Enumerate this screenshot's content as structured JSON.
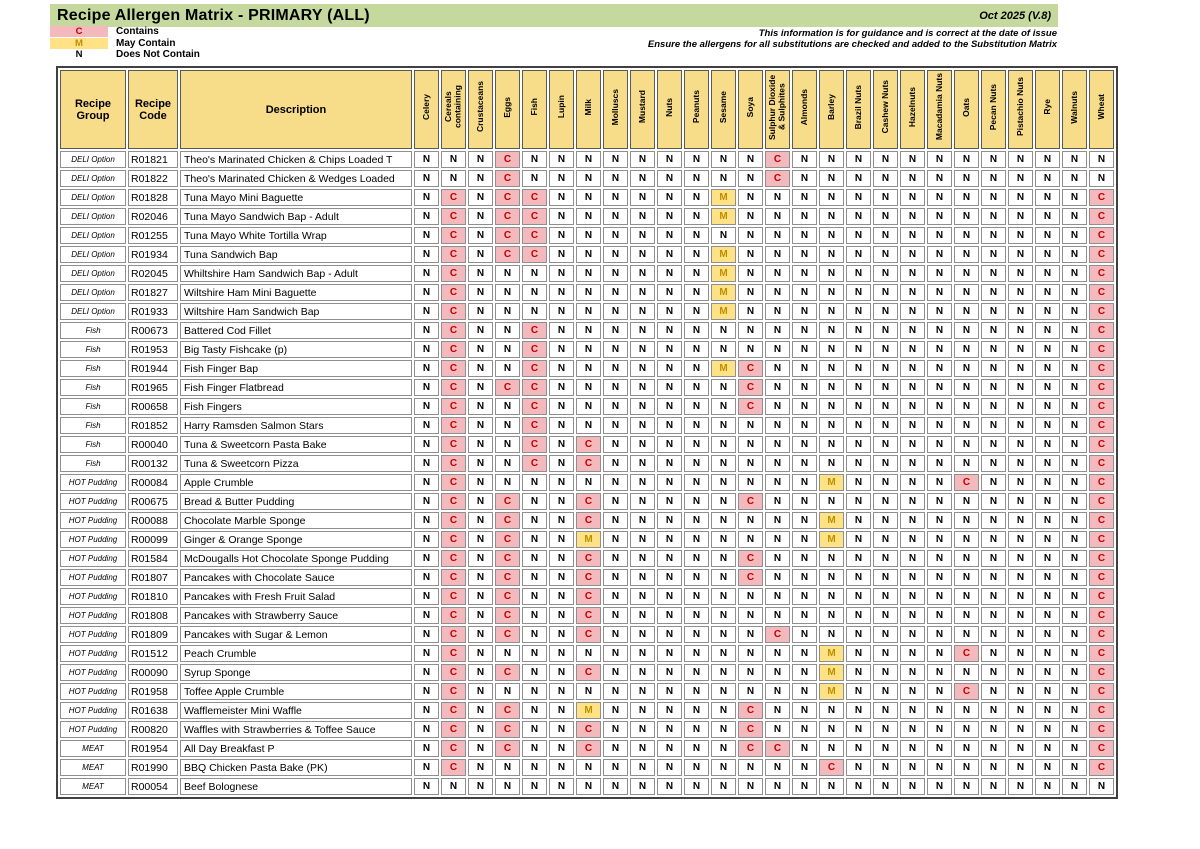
{
  "title_bar": {
    "title": "Recipe Allergen Matrix - PRIMARY (ALL)",
    "version": "Oct 2025 (V.8)"
  },
  "notices": [
    "This information is for guidance and is correct at the date of issue",
    "Ensure the allergens for all substitutions are checked and added to the Substitution Matrix"
  ],
  "legend": [
    {
      "key": "C",
      "symbol": "C",
      "label": "Contains"
    },
    {
      "key": "M",
      "symbol": "M",
      "label": "May Contain"
    },
    {
      "key": "N",
      "symbol": "N",
      "label": "Does Not Contain"
    }
  ],
  "colors": {
    "title_bar_bg": "#C5D89D",
    "header_cell_bg": "#F7DC8A",
    "contains_bg": "#F4B9BD",
    "contains_fg": "#C00000",
    "may_contain_bg": "#FFE285",
    "may_contain_fg": "#BF8F00",
    "does_not_contain_fg": "#000000"
  },
  "table": {
    "fixed_headers": [
      "Recipe Group",
      "Recipe Code",
      "Description"
    ],
    "allergen_headers": [
      "Celery",
      "Cereals containing",
      "Crustaceans",
      "Eggs",
      "Fish",
      "Lupin",
      "Milk",
      "Molluscs",
      "Mustard",
      "Nuts",
      "Peanuts",
      "Sesame",
      "Soya",
      "Sulphur Dioxide & Sulphites",
      "Almonds",
      "Barley",
      "Brazil Nuts",
      "Cashew Nuts",
      "Hazelnuts",
      "Macadamia Nuts",
      "Oats",
      "Pecan Nuts",
      "Pistachio Nuts",
      "Rye",
      "Walnuts",
      "Wheat"
    ],
    "rows": [
      {
        "group": "DELI Option",
        "code": "R01821",
        "desc": "Theo's Marinated Chicken & Chips Loaded T",
        "values": "NNNCNNNNNNNNNCNNNNNNNNNNNN"
      },
      {
        "group": "DELI Option",
        "code": "R01822",
        "desc": "Theo's Marinated Chicken & Wedges Loaded",
        "values": "NNNCNNNNNNNNNCNNNNNNNNNNNN"
      },
      {
        "group": "DELI Option",
        "code": "R01828",
        "desc": "Tuna Mayo Mini Baguette",
        "values": "NCNCCNNNNNNMNNNNNNNNNNNNNC"
      },
      {
        "group": "DELI Option",
        "code": "R02046",
        "desc": "Tuna Mayo Sandwich Bap - Adult",
        "values": "NCNCCNNNNNNMNNNNNNNNNNNNNC"
      },
      {
        "group": "DELI Option",
        "code": "R01255",
        "desc": "Tuna Mayo White Tortilla Wrap",
        "values": "NCNCCNNNNNNNNNNNNNNNNNNNNC"
      },
      {
        "group": "DELI Option",
        "code": "R01934",
        "desc": "Tuna Sandwich Bap",
        "values": "NCNCCNNNNNNMNNNNNNNNNNNNNC"
      },
      {
        "group": "DELI Option",
        "code": "R02045",
        "desc": "Whiltshire Ham Sandwich Bap - Adult",
        "values": "NCNNNNNNNNNMNNNNNNNNNNNNNC"
      },
      {
        "group": "DELI Option",
        "code": "R01827",
        "desc": "Wiltshire Ham Mini Baguette",
        "values": "NCNNNNNNNNNMNNNNNNNNNNNNNC"
      },
      {
        "group": "DELI Option",
        "code": "R01933",
        "desc": "Wiltshire Ham Sandwich Bap",
        "values": "NCNNNNNNNNNMNNNNNNNNNNNNNC"
      },
      {
        "group": "Fish",
        "code": "R00673",
        "desc": "Battered Cod Fillet",
        "values": "NCNNCNNNNNNNNNNNNNNNNNNNNC"
      },
      {
        "group": "Fish",
        "code": "R01953",
        "desc": "Big Tasty Fishcake (p)",
        "values": "NCNNCNNNNNNNNNNNNNNNNNNNNC"
      },
      {
        "group": "Fish",
        "code": "R01944",
        "desc": "Fish Finger Bap",
        "values": "NCNNCNNNNNNMCNNNNNNNNNNNNC"
      },
      {
        "group": "Fish",
        "code": "R01965",
        "desc": "Fish Finger Flatbread",
        "values": "NCNCCNNNNNNNCNNNNNNNNNNNNC"
      },
      {
        "group": "Fish",
        "code": "R00658",
        "desc": "Fish Fingers",
        "values": "NCNNCNNNNNNNCNNNNNNNNNNNNC"
      },
      {
        "group": "Fish",
        "code": "R01852",
        "desc": "Harry Ramsden Salmon Stars",
        "values": "NCNNCNNNNNNNNNNNNNNNNNNNNC"
      },
      {
        "group": "Fish",
        "code": "R00040",
        "desc": "Tuna & Sweetcorn Pasta Bake",
        "values": "NCNNCNCNNNNNNNNNNNNNNNNNNC"
      },
      {
        "group": "Fish",
        "code": "R00132",
        "desc": "Tuna & Sweetcorn Pizza",
        "values": "NCNNCNCNNNNNNNNNNNNNNNNNNC"
      },
      {
        "group": "HOT Pudding",
        "code": "R00084",
        "desc": "Apple Crumble",
        "values": "NCNNNNNNNNNNNNNMNNNNCNNNNC"
      },
      {
        "group": "HOT Pudding",
        "code": "R00675",
        "desc": "Bread & Butter Pudding",
        "values": "NCNCNNCNNNNNCNNNNNNNNNNNNC"
      },
      {
        "group": "HOT Pudding",
        "code": "R00088",
        "desc": "Chocolate Marble Sponge",
        "values": "NCNCNNCNNNNNNNNMNNNNNNNNNC"
      },
      {
        "group": "HOT Pudding",
        "code": "R00099",
        "desc": "Ginger & Orange Sponge",
        "values": "NCNCNNMNNNNNNNNMNNNNNNNNNC"
      },
      {
        "group": "HOT Pudding",
        "code": "R01584",
        "desc": "McDougalls Hot Chocolate Sponge Pudding",
        "values": "NCNCNNCNNNNNCNNNNNNNNNNNNC"
      },
      {
        "group": "HOT Pudding",
        "code": "R01807",
        "desc": "Pancakes with Chocolate Sauce",
        "values": "NCNCNNCNNNNNCNNNNNNNNNNNNC"
      },
      {
        "group": "HOT Pudding",
        "code": "R01810",
        "desc": "Pancakes with Fresh Fruit Salad",
        "values": "NCNCNNCNNNNNNNNNNNNNNNNNNC"
      },
      {
        "group": "HOT Pudding",
        "code": "R01808",
        "desc": "Pancakes with Strawberry Sauce",
        "values": "NCNCNNCNNNNNNNNNNNNNNNNNNC"
      },
      {
        "group": "HOT Pudding",
        "code": "R01809",
        "desc": "Pancakes with Sugar & Lemon",
        "values": "NCNCNNCNNNNNNCNNNNNNNNNNNC"
      },
      {
        "group": "HOT Pudding",
        "code": "R01512",
        "desc": "Peach Crumble",
        "values": "NCNNNNNNNNNNNNNMNNNNCNNNNC"
      },
      {
        "group": "HOT Pudding",
        "code": "R00090",
        "desc": "Syrup Sponge",
        "values": "NCNCNNCNNNNNNNNMNNNNNNNNNC"
      },
      {
        "group": "HOT Pudding",
        "code": "R01958",
        "desc": "Toffee Apple Crumble",
        "values": "NCNNNNNNNNNNNNNMNNNNCNNNNC"
      },
      {
        "group": "HOT Pudding",
        "code": "R01638",
        "desc": "Wafflemeister Mini Waffle",
        "values": "NCNCNNMNNNNNCNNNNNNNNNNNNC"
      },
      {
        "group": "HOT Pudding",
        "code": "R00820",
        "desc": "Waffles with Strawberries & Toffee Sauce",
        "values": "NCNCNNCNNNNNCNNNNNNNNNNNNC"
      },
      {
        "group": "MEAT",
        "code": "R01954",
        "desc": "All Day Breakfast P",
        "values": "NCNCNNCNNNNNCCNNNNNNNNNNNC"
      },
      {
        "group": "MEAT",
        "code": "R01990",
        "desc": "BBQ Chicken Pasta Bake (PK)",
        "values": "NCNNNNNNNNNNNNNCNNNNNNNNNC"
      },
      {
        "group": "MEAT",
        "code": "R00054",
        "desc": "Beef Bolognese",
        "values": "NNNNNNNNNNNNNNNNNNNNNNNNNN"
      }
    ]
  }
}
